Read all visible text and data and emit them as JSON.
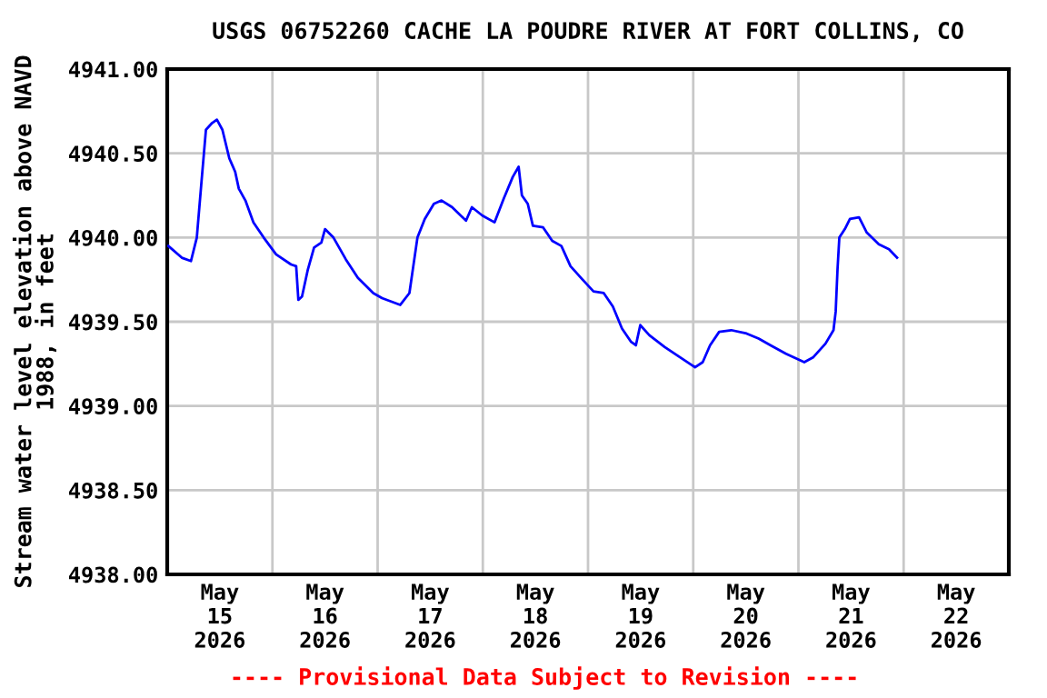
{
  "chart_data": {
    "type": "line",
    "title": "USGS 06752260 CACHE LA POUDRE RIVER AT FORT COLLINS, CO",
    "ylabel": "Stream water level elevation above NAVD\n1988, in feet",
    "annotations": [
      "---- Provisional Data Subject to Revision ----"
    ],
    "series": [
      {
        "color": "#0000ff",
        "x": [
          "2026-05-15T00:15",
          "2026-05-15T03:20",
          "2026-05-15T05:25",
          "2026-05-15T06:45",
          "2026-05-15T07:45",
          "2026-05-15T08:50",
          "2026-05-15T10:15",
          "2026-05-15T11:20",
          "2026-05-15T12:35",
          "2026-05-15T14:10",
          "2026-05-15T15:30",
          "2026-05-15T16:20",
          "2026-05-15T17:50",
          "2026-05-15T19:40",
          "2026-05-15T22:00",
          "2026-05-16T00:50",
          "2026-05-16T04:15",
          "2026-05-16T05:25",
          "2026-05-16T05:55",
          "2026-05-16T06:45",
          "2026-05-16T08:05",
          "2026-05-16T09:30",
          "2026-05-16T11:10",
          "2026-05-16T12:00",
          "2026-05-16T13:55",
          "2026-05-16T16:45",
          "2026-05-16T19:30",
          "2026-05-16T23:00",
          "2026-05-17T01:00",
          "2026-05-17T05:10",
          "2026-05-17T07:15",
          "2026-05-17T09:05",
          "2026-05-17T10:45",
          "2026-05-17T12:50",
          "2026-05-17T14:35",
          "2026-05-17T17:00",
          "2026-05-17T20:10",
          "2026-05-17T21:30",
          "2026-05-17T23:55",
          "2026-05-18T02:40",
          "2026-05-18T04:45",
          "2026-05-18T06:50",
          "2026-05-18T08:10",
          "2026-05-18T08:55",
          "2026-05-18T10:15",
          "2026-05-18T11:25",
          "2026-05-18T13:45",
          "2026-05-18T15:50",
          "2026-05-18T17:55",
          "2026-05-18T20:00",
          "2026-05-18T22:45",
          "2026-05-19T01:15",
          "2026-05-19T03:35",
          "2026-05-19T05:40",
          "2026-05-19T07:45",
          "2026-05-19T09:50",
          "2026-05-19T10:55",
          "2026-05-19T11:55",
          "2026-05-19T14:00",
          "2026-05-19T17:30",
          "2026-05-19T20:55",
          "2026-05-20T00:25",
          "2026-05-20T02:10",
          "2026-05-20T03:50",
          "2026-05-20T05:55",
          "2026-05-20T08:40",
          "2026-05-20T12:10",
          "2026-05-20T14:55",
          "2026-05-20T17:40",
          "2026-05-20T21:10",
          "2026-05-21T01:20",
          "2026-05-21T03:25",
          "2026-05-21T06:10",
          "2026-05-21T08:00",
          "2026-05-21T08:30",
          "2026-05-21T08:55",
          "2026-05-21T09:20",
          "2026-05-21T10:35",
          "2026-05-21T11:45",
          "2026-05-21T13:50",
          "2026-05-21T15:35",
          "2026-05-21T18:20",
          "2026-05-21T20:40",
          "2026-05-21T22:30"
        ],
        "values": [
          4939.95,
          4939.88,
          4939.86,
          4940.0,
          4940.31,
          4940.64,
          4940.68,
          4940.7,
          4940.64,
          4940.47,
          4940.39,
          4940.29,
          4940.22,
          4940.09,
          4940.0,
          4939.9,
          4939.84,
          4939.83,
          4939.63,
          4939.65,
          4939.81,
          4939.94,
          4939.97,
          4940.05,
          4940.0,
          4939.87,
          4939.76,
          4939.67,
          4939.64,
          4939.6,
          4939.67,
          4940.0,
          4940.11,
          4940.2,
          4940.22,
          4940.18,
          4940.1,
          4940.18,
          4940.13,
          4940.09,
          4940.23,
          4940.36,
          4940.42,
          4940.25,
          4940.2,
          4940.07,
          4940.06,
          4939.98,
          4939.95,
          4939.83,
          4939.75,
          4939.68,
          4939.67,
          4939.59,
          4939.46,
          4939.38,
          4939.36,
          4939.48,
          4939.42,
          4939.35,
          4939.29,
          4939.23,
          4939.26,
          4939.36,
          4939.44,
          4939.45,
          4939.43,
          4939.4,
          4939.36,
          4939.31,
          4939.26,
          4939.29,
          4939.37,
          4939.45,
          4939.56,
          4939.81,
          4940.0,
          4940.05,
          4940.11,
          4940.12,
          4940.03,
          4939.96,
          4939.93,
          4939.88
        ]
      }
    ],
    "xlim": [
      "2026-05-15T00:00",
      "2026-05-23T00:00"
    ],
    "xticks": [
      {
        "value": "2026-05-15T12:00",
        "label": "May\n15\n2026"
      },
      {
        "value": "2026-05-16T00:00",
        "label": null
      },
      {
        "value": "2026-05-16T12:00",
        "label": "May\n16\n2026"
      },
      {
        "value": "2026-05-17T00:00",
        "label": null
      },
      {
        "value": "2026-05-17T12:00",
        "label": "May\n17\n2026"
      },
      {
        "value": "2026-05-18T00:00",
        "label": null
      },
      {
        "value": "2026-05-18T12:00",
        "label": "May\n18\n2026"
      },
      {
        "value": "2026-05-19T00:00",
        "label": null
      },
      {
        "value": "2026-05-19T12:00",
        "label": "May\n19\n2026"
      },
      {
        "value": "2026-05-20T00:00",
        "label": null
      },
      {
        "value": "2026-05-20T12:00",
        "label": "May\n20\n2026"
      },
      {
        "value": "2026-05-21T00:00",
        "label": null
      },
      {
        "value": "2026-05-21T12:00",
        "label": "May\n21\n2026"
      },
      {
        "value": "2026-05-22T00:00",
        "label": null
      },
      {
        "value": "2026-05-22T12:00",
        "label": "May\n22\n2026"
      }
    ],
    "ylim": [
      4938.0,
      4941.0
    ],
    "yticks": [
      {
        "value": 4938.0,
        "label": "4938.00"
      },
      {
        "value": 4938.5,
        "label": "4938.50"
      },
      {
        "value": 4939.0,
        "label": "4939.00"
      },
      {
        "value": 4939.5,
        "label": "4939.50"
      },
      {
        "value": 4940.0,
        "label": "4940.00"
      },
      {
        "value": 4940.5,
        "label": "4940.50"
      },
      {
        "value": 4941.0,
        "label": "4941.00"
      }
    ],
    "grid": true,
    "legend": false,
    "marker": "none",
    "line_style": "solid"
  }
}
